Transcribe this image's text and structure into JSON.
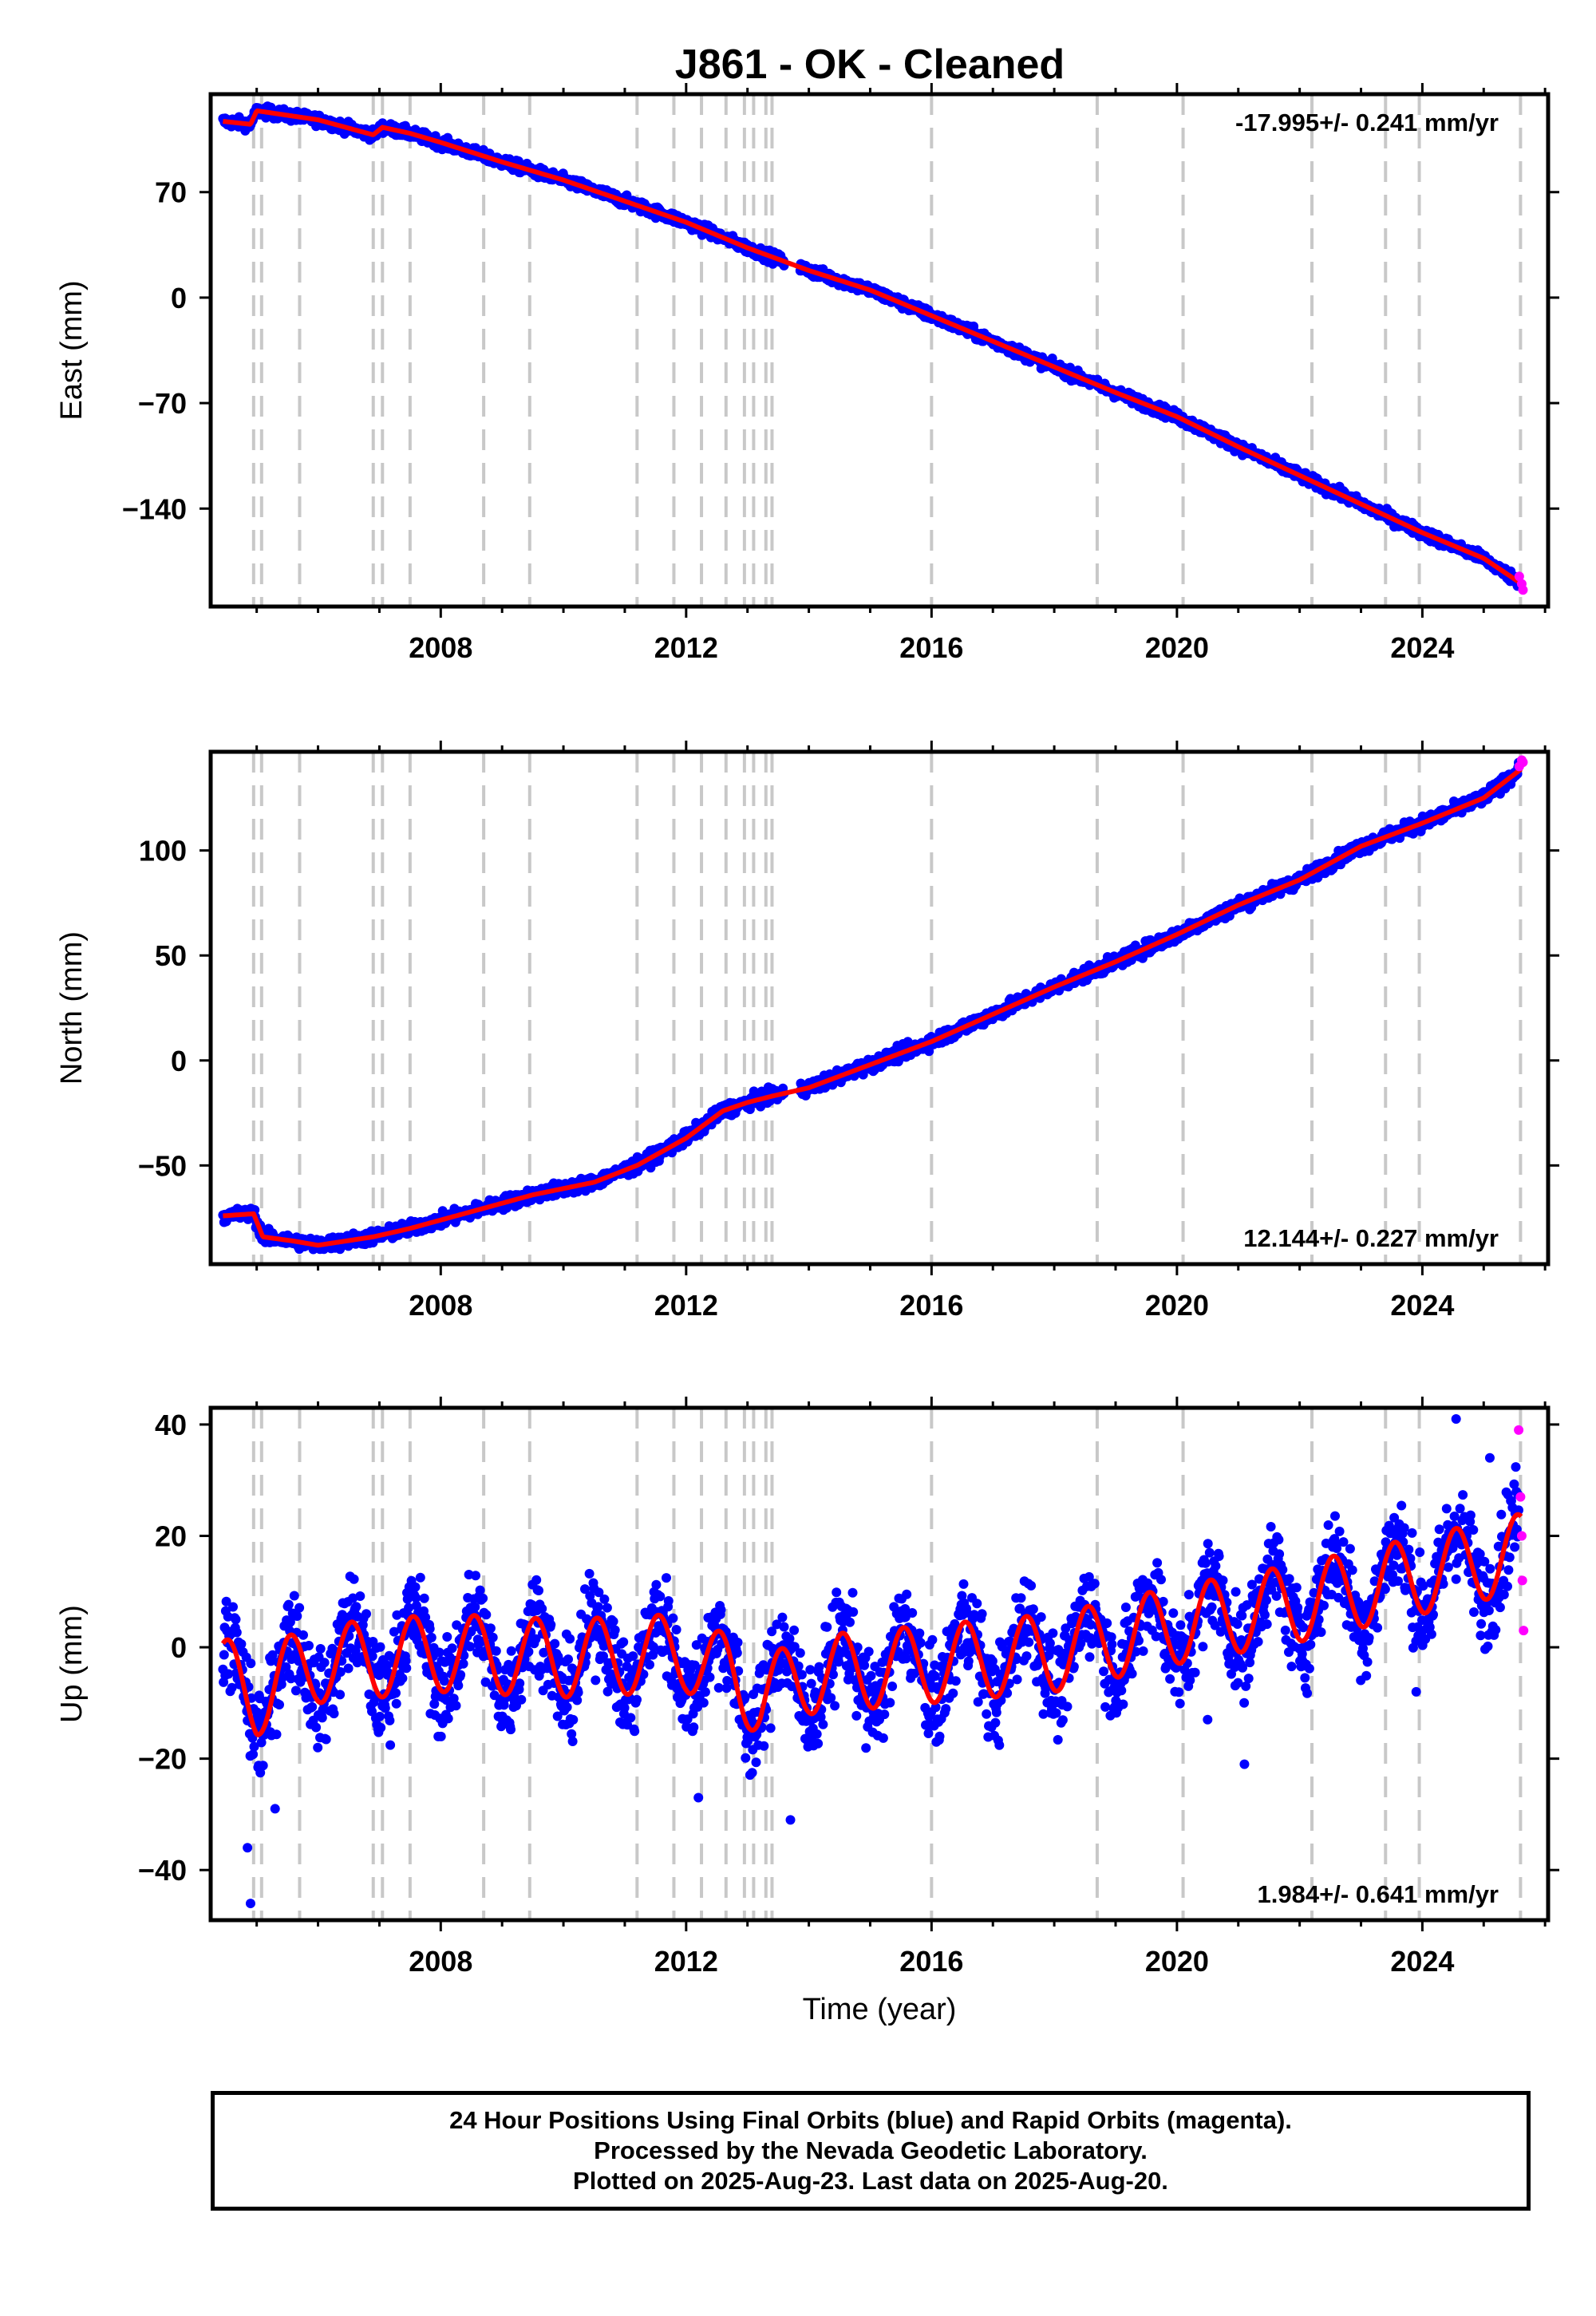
{
  "chart_data": {
    "type": "scatter",
    "title": "J861  - OK - Cleaned",
    "xlabel": "Time (year)",
    "xlim": [
      2004.25,
      2026.05
    ],
    "x_ticks": [
      2008,
      2012,
      2016,
      2020,
      2024
    ],
    "x_tick_labels": [
      "2008",
      "2012",
      "2016",
      "2020",
      "2024"
    ],
    "grid": false,
    "legend": "none",
    "colors": {
      "final": "#0000ff",
      "rapid": "#ff00ff",
      "model": "#ff0000",
      "events": "#c8c8c8"
    },
    "event_lines": [
      2004.95,
      2005.08,
      2005.7,
      2006.9,
      2007.05,
      2007.5,
      2008.7,
      2009.45,
      2011.2,
      2011.8,
      2012.25,
      2012.65,
      2012.95,
      2013.1,
      2013.3,
      2013.4,
      2016.0,
      2018.7,
      2020.1,
      2022.2,
      2023.4,
      2023.95,
      2025.6
    ],
    "panels": [
      {
        "id": "east",
        "ylabel": "East (mm)",
        "ylim": [
          -205,
          135
        ],
        "y_ticks": [
          70,
          0,
          -70,
          -140
        ],
        "y_tick_labels": [
          "70",
          "0",
          "−70",
          "−140"
        ],
        "rate_label": "-17.995+/- 0.241 mm/yr",
        "rate_position": "top-right",
        "noise_mm": 1.8,
        "model": {
          "x": [
            2004.45,
            2004.9,
            2005.0,
            2005.5,
            2006.0,
            2006.9,
            2007.05,
            2007.5,
            2008.0,
            2009.0,
            2010.0,
            2011.0,
            2012.0,
            2013.0,
            2014.0,
            2015.0,
            2016.0,
            2017.0,
            2018.0,
            2019.0,
            2020.0,
            2021.0,
            2022.0,
            2023.0,
            2024.0,
            2025.0,
            2025.62
          ],
          "y": [
            117,
            115,
            124,
            121,
            118,
            108,
            113,
            109,
            103,
            90,
            78,
            64,
            50,
            33,
            18,
            5,
            -12,
            -29,
            -46,
            -63,
            -79,
            -99,
            -118,
            -137,
            -156,
            -173,
            -190
          ]
        },
        "rapid": {
          "x": [
            2025.58,
            2025.62,
            2025.64
          ],
          "y": [
            -185,
            -190,
            -194
          ]
        }
      },
      {
        "id": "north",
        "ylabel": "North (mm)",
        "ylim": [
          -97,
          147
        ],
        "y_ticks": [
          100,
          50,
          0,
          -50
        ],
        "y_tick_labels": [
          "100",
          "50",
          "0",
          "−50"
        ],
        "rate_label": "12.144+/- 0.227 mm/yr",
        "rate_position": "bottom-right",
        "noise_mm": 1.6,
        "model": {
          "x": [
            2004.45,
            2004.95,
            2005.1,
            2005.6,
            2006.0,
            2006.9,
            2007.5,
            2008.5,
            2009.5,
            2010.5,
            2011.2,
            2012.0,
            2012.6,
            2013.0,
            2013.4,
            2014.0,
            2015.0,
            2016.0,
            2017.0,
            2018.0,
            2019.0,
            2020.0,
            2021.0,
            2022.0,
            2023.0,
            2024.0,
            2025.0,
            2025.62
          ],
          "y": [
            -74,
            -73,
            -84,
            -86,
            -88,
            -84,
            -80,
            -72,
            -64,
            -58,
            -50,
            -37,
            -24,
            -20,
            -17,
            -13,
            -2,
            9,
            22,
            35,
            47,
            60,
            74,
            86,
            102,
            113,
            125,
            139
          ]
        },
        "rapid": {
          "x": [
            2025.58,
            2025.62,
            2025.64
          ],
          "y": [
            140,
            143,
            142
          ]
        }
      },
      {
        "id": "up",
        "ylabel": "Up (mm)",
        "ylim": [
          -49,
          43
        ],
        "y_ticks": [
          40,
          20,
          0,
          -20,
          -40
        ],
        "y_tick_labels": [
          "40",
          "20",
          "0",
          "−20",
          "−40"
        ],
        "rate_label": "1.984+/- 0.641 mm/yr",
        "rate_position": "bottom-right",
        "noise_mm": 4.2,
        "seasonal": {
          "amplitude_mm": 7,
          "peak_phase_year": 0.55
        },
        "trend": {
          "x": [
            2004.45,
            2005.0,
            2005.5,
            2006.0,
            2008.0,
            2010.0,
            2012.0,
            2012.7,
            2013.2,
            2014.0,
            2016.0,
            2018.0,
            2020.0,
            2022.0,
            2024.0,
            2025.62
          ],
          "y": [
            -5,
            -9,
            -5,
            -3,
            -1,
            -2,
            -1,
            -5,
            -9,
            -5,
            -3,
            -1,
            4,
            8,
            13,
            17
          ]
        },
        "outliers": {
          "x": [
            2004.85,
            2004.9,
            2005.3,
            2012.2,
            2013.7,
            2020.5,
            2021.1,
            2023.9,
            2024.55,
            2025.1
          ],
          "y": [
            -36,
            -46,
            -29,
            -27,
            -31,
            -13,
            -21,
            -8,
            41,
            34
          ]
        },
        "rapid": {
          "x": [
            2025.57,
            2025.6,
            2025.62,
            2025.63,
            2025.65
          ],
          "y": [
            39,
            27,
            20,
            12,
            3
          ]
        }
      }
    ]
  },
  "footer": {
    "line1": "24 Hour Positions Using Final Orbits (blue) and Rapid Orbits (magenta).",
    "line2": "Processed by the Nevada Geodetic Laboratory.",
    "line3": "Plotted on 2025-Aug-23. Last data on 2025-Aug-20."
  }
}
